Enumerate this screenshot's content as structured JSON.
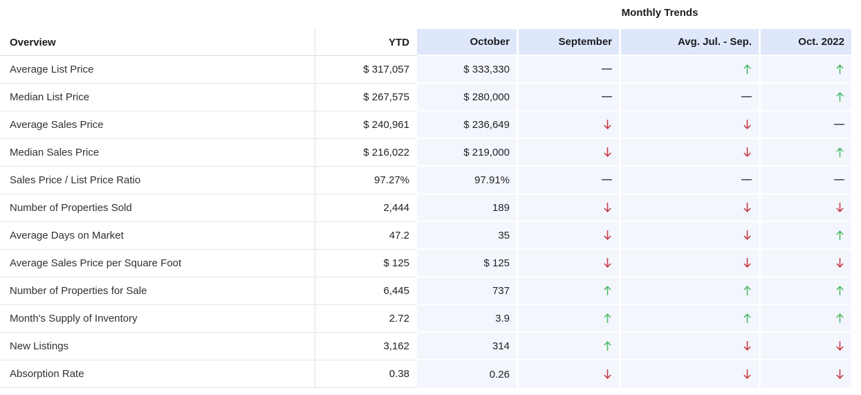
{
  "title": "Monthly Trends",
  "columns": {
    "overview": "Overview",
    "ytd": "YTD",
    "october": "October",
    "september": "September",
    "avg_jul_sep": "Avg. Jul. - Sep.",
    "oct_2022": "Oct. 2022"
  },
  "colors": {
    "trend_up_green": "#4dba6a",
    "trend_down_red": "#c63b47",
    "flat_dash": "#3c4249",
    "header_bg": "#dfe8fa",
    "cell_bg": "#f4f6fd"
  },
  "trend_glyphs": {
    "up": "↑",
    "down": "↓",
    "flat": "—"
  },
  "rows": [
    {
      "label": "Average List Price",
      "ytd": "$ 317,057",
      "october": "$ 333,330",
      "september": "flat",
      "avg_jul_sep": "up",
      "oct_2022": "up"
    },
    {
      "label": "Median List Price",
      "ytd": "$ 267,575",
      "october": "$ 280,000",
      "september": "flat",
      "avg_jul_sep": "flat",
      "oct_2022": "up"
    },
    {
      "label": "Average Sales Price",
      "ytd": "$ 240,961",
      "october": "$ 236,649",
      "september": "down",
      "avg_jul_sep": "down",
      "oct_2022": "flat"
    },
    {
      "label": "Median Sales Price",
      "ytd": "$ 216,022",
      "october": "$ 219,000",
      "september": "down",
      "avg_jul_sep": "down",
      "oct_2022": "up"
    },
    {
      "label": "Sales Price / List Price Ratio",
      "ytd": "97.27%",
      "october": "97.91%",
      "september": "flat",
      "avg_jul_sep": "flat",
      "oct_2022": "flat"
    },
    {
      "label": "Number of Properties Sold",
      "ytd": "2,444",
      "october": "189",
      "september": "down",
      "avg_jul_sep": "down",
      "oct_2022": "down"
    },
    {
      "label": "Average Days on Market",
      "ytd": "47.2",
      "october": "35",
      "september": "down",
      "avg_jul_sep": "down",
      "oct_2022": "up"
    },
    {
      "label": "Average Sales Price per Square Foot",
      "ytd": "$ 125",
      "october": "$ 125",
      "september": "down",
      "avg_jul_sep": "down",
      "oct_2022": "down"
    },
    {
      "label": "Number of Properties for Sale",
      "ytd": "6,445",
      "october": "737",
      "september": "up",
      "avg_jul_sep": "up",
      "oct_2022": "up"
    },
    {
      "label": "Month's Supply of Inventory",
      "ytd": "2.72",
      "october": "3.9",
      "september": "up",
      "avg_jul_sep": "up",
      "oct_2022": "up"
    },
    {
      "label": "New Listings",
      "ytd": "3,162",
      "october": "314",
      "september": "up",
      "avg_jul_sep": "down",
      "oct_2022": "down"
    },
    {
      "label": "Absorption Rate",
      "ytd": "0.38",
      "october": "0.26",
      "september": "down",
      "avg_jul_sep": "down",
      "oct_2022": "down"
    }
  ]
}
